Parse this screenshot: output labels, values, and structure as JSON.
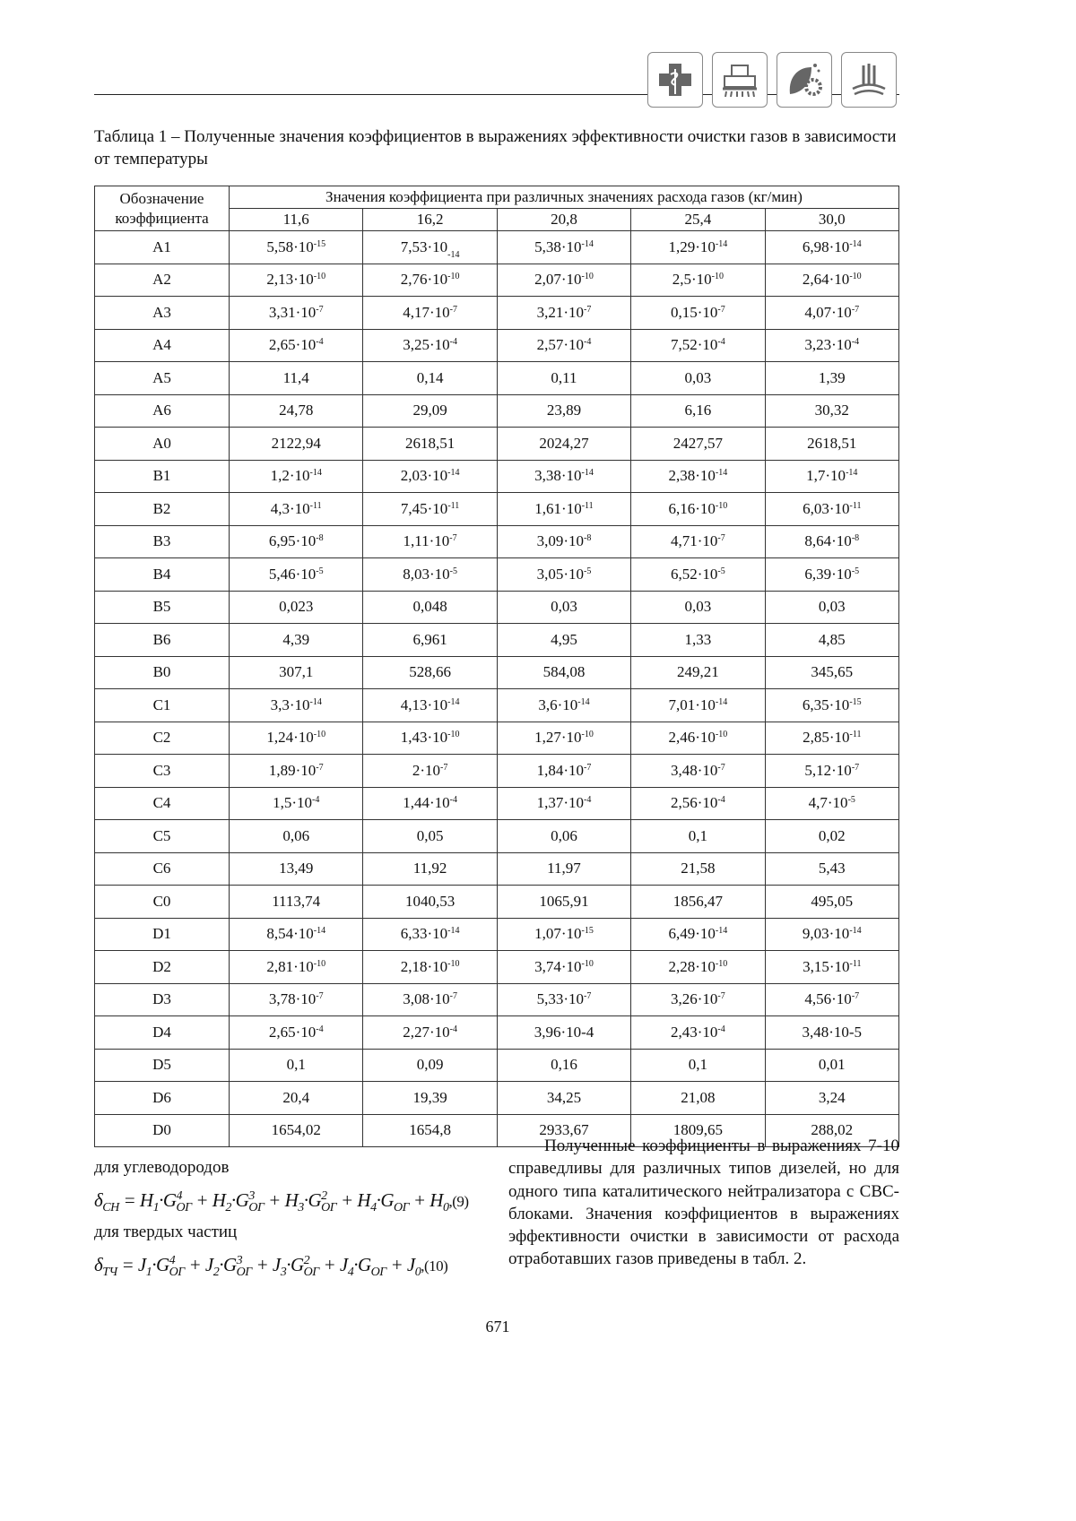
{
  "header": {
    "icons": [
      "medical-cross-icon",
      "harvester-icon",
      "leaf-gear-icon",
      "wheat-field-icon"
    ]
  },
  "caption": "Таблица 1 – Полученные значения коэффициентов в выражениях эффективности очистки газов в зависимости от температуры",
  "table": {
    "col0_header": "Обозначение коэффициента",
    "group_header": "Значения коэффициента при различных значениях расхода газов (кг/мин)",
    "flows": [
      "11,6",
      "16,2",
      "20,8",
      "25,4",
      "30,0"
    ],
    "rows": [
      {
        "name": "A1",
        "values": [
          "5,58·10^-15",
          "7,53·10_-14",
          "5,38·10^-14",
          "1,29·10^-14",
          "6,98·10^-14"
        ]
      },
      {
        "name": "A2",
        "values": [
          "2,13·10^-10",
          "2,76·10^-10",
          "2,07·10^-10",
          "2,5·10^-10",
          "2,64·10^-10"
        ]
      },
      {
        "name": "A3",
        "values": [
          "3,31·10^-7",
          "4,17·10^-7",
          "3,21·10^-7",
          "0,15·10^-7",
          "4,07·10^-7"
        ]
      },
      {
        "name": "A4",
        "values": [
          "2,65·10^-4",
          "3,25·10^-4",
          "2,57·10^-4",
          "7,52·10^-4",
          "3,23·10^-4"
        ]
      },
      {
        "name": "A5",
        "values": [
          "11,4",
          "0,14",
          "0,11",
          "0,03",
          "1,39"
        ]
      },
      {
        "name": "A6",
        "values": [
          "24,78",
          "29,09",
          "23,89",
          "6,16",
          "30,32"
        ]
      },
      {
        "name": "A0",
        "values": [
          "2122,94",
          "2618,51",
          "2024,27",
          "2427,57",
          "2618,51"
        ]
      },
      {
        "name": "B1",
        "values": [
          "1,2·10^-14",
          "2,03·10^-14",
          "3,38·10^-14",
          "2,38·10^-14",
          "1,7·10^-14"
        ]
      },
      {
        "name": "B2",
        "values": [
          "4,3·10^-11",
          "7,45·10^-11",
          "1,61·10^-11",
          "6,16·10^-10",
          "6,03·10^-11"
        ]
      },
      {
        "name": "B3",
        "values": [
          "6,95·10^-8",
          "1,11·10^-7",
          "3,09·10^-8",
          "4,71·10^-7",
          "8,64·10^-8"
        ]
      },
      {
        "name": "B4",
        "values": [
          "5,46·10^-5",
          "8,03·10^-5",
          "3,05·10^-5",
          "6,52·10^-5",
          "6,39·10^-5"
        ]
      },
      {
        "name": "B5",
        "values": [
          "0,023",
          "0,048",
          "0,03",
          "0,03",
          "0,03"
        ]
      },
      {
        "name": "B6",
        "values": [
          "4,39",
          "6,961",
          "4,95",
          "1,33",
          "4,85"
        ]
      },
      {
        "name": "B0",
        "values": [
          "307,1",
          "528,66",
          "584,08",
          "249,21",
          "345,65"
        ]
      },
      {
        "name": "C1",
        "values": [
          "3,3·10^-14",
          "4,13·10^-14",
          "3,6·10^-14",
          "7,01·10^-14",
          "6,35·10^-15"
        ]
      },
      {
        "name": "C2",
        "values": [
          "1,24·10^-10",
          "1,43·10^-10",
          "1,27·10^-10",
          "2,46·10^-10",
          "2,85·10^-11"
        ]
      },
      {
        "name": "C3",
        "values": [
          "1,89·10^-7",
          "2·10^-7",
          "1,84·10^-7",
          "3,48·10^-7",
          "5,12·10^-7"
        ]
      },
      {
        "name": "C4",
        "values": [
          "1,5·10^-4",
          "1,44·10^-4",
          "1,37·10^-4",
          "2,56·10^-4",
          "4,7·10^-5"
        ]
      },
      {
        "name": "C5",
        "values": [
          "0,06",
          "0,05",
          "0,06",
          "0,1",
          "0,02"
        ]
      },
      {
        "name": "C6",
        "values": [
          "13,49",
          "11,92",
          "11,97",
          "21,58",
          "5,43"
        ]
      },
      {
        "name": "C0",
        "values": [
          "1113,74",
          "1040,53",
          "1065,91",
          "1856,47",
          "495,05"
        ]
      },
      {
        "name": "D1",
        "values": [
          "8,54·10^-14",
          "6,33·10^-14",
          "1,07·10^-15",
          "6,49·10^-14",
          "9,03·10^-14"
        ]
      },
      {
        "name": "D2",
        "values": [
          "2,81·10^-10",
          "2,18·10^-10",
          "3,74·10^-10",
          "2,28·10^-10",
          "3,15·10^-11"
        ]
      },
      {
        "name": "D3",
        "values": [
          "3,78·10^-7",
          "3,08·10^-7",
          "5,33·10^-7",
          "3,26·10^-7",
          "4,56·10^-7"
        ]
      },
      {
        "name": "D4",
        "values": [
          "2,65·10^-4",
          "2,27·10^-4",
          "3,96·10-4",
          "2,43·10^-4",
          "3,48·10-5"
        ]
      },
      {
        "name": "D5",
        "values": [
          "0,1",
          "0,09",
          "0,16",
          "0,1",
          "0,01"
        ]
      },
      {
        "name": "D6",
        "values": [
          "20,4",
          "19,39",
          "34,25",
          "21,08",
          "3,24"
        ]
      },
      {
        "name": "D0",
        "values": [
          "1654,02",
          "1654,8",
          "2933,67",
          "1809,65",
          "288,02"
        ]
      }
    ]
  },
  "left": {
    "label1": "для углеводородов",
    "formula1": "δ_CH = H_1·G^4_ОГ + H_2·G^3_ОГ + H_3·G^2_ОГ + H_4·G_ОГ + H_0",
    "formula1_num": ",(9)",
    "label2": "для твердых частиц",
    "formula2": "δ_ТЧ = J_1·G^4_ОГ + J_2·G^3_ОГ + J_3·G^2_ОГ + J_4·G_ОГ + J_0",
    "formula2_num": ",(10)"
  },
  "right_paragraph": "Полученные коэффициенты в выражениях 7-10 справедливы для различных типов дизелей, но для одного типа каталитического нейтрализатора с СВС-блоками. Значения коэффициентов в выражениях эффективности очистки в зависимости от расхода отработавших газов приведены в табл. 2.",
  "page_number": "671"
}
